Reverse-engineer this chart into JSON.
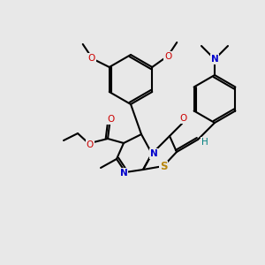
{
  "bg_color": "#e8e8e8",
  "figsize": [
    3.0,
    3.0
  ],
  "dpi": 100,
  "colors": {
    "bond": "#000000",
    "S": "#b8860b",
    "N": "#0000cc",
    "O": "#cc0000",
    "H": "#008080",
    "C": "#000000"
  },
  "lw": 1.5,
  "fs": 7.5
}
